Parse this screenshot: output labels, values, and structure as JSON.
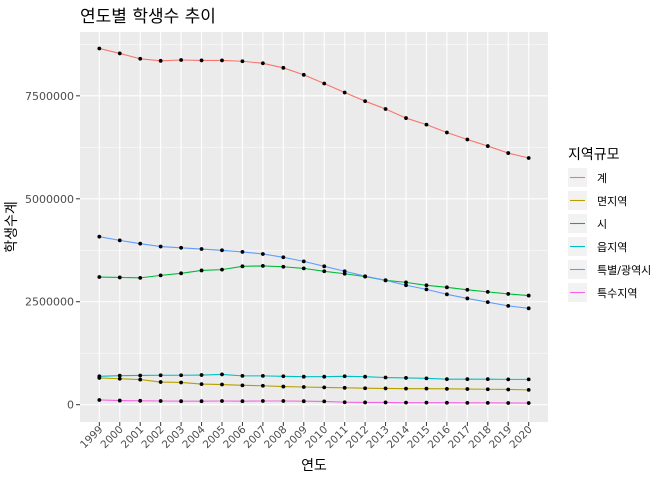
{
  "chart_data": {
    "type": "line",
    "title": "연도별 학생수 추이",
    "xlabel": "연도",
    "ylabel": "학생수계",
    "x": [
      1999,
      2000,
      2001,
      2002,
      2003,
      2004,
      2005,
      2006,
      2007,
      2008,
      2009,
      2010,
      2011,
      2012,
      2013,
      2014,
      2015,
      2016,
      2017,
      2018,
      2019,
      2020
    ],
    "x_tick_labels": [
      "1999",
      "2000",
      "2001",
      "2002",
      "2003",
      "2004",
      "2005",
      "2006",
      "2007",
      "2008",
      "2009",
      "2010",
      "2011",
      "2012",
      "2013",
      "2014",
      "2015",
      "2016",
      "2017",
      "2018",
      "2019",
      "2020"
    ],
    "y_ticks": [
      0,
      2500000,
      5000000,
      7500000
    ],
    "y_tick_labels": [
      "0",
      "2500000",
      "5000000",
      "7500000"
    ],
    "ylim": [
      -420000,
      9050000
    ],
    "grid": true,
    "points": true,
    "legend": {
      "title": "지역규모",
      "position": "right"
    },
    "series": [
      {
        "name": "계",
        "color": "#F8766D",
        "values": [
          8650000,
          8530000,
          8400000,
          8350000,
          8370000,
          8360000,
          8360000,
          8340000,
          8290000,
          8180000,
          8010000,
          7800000,
          7580000,
          7370000,
          7180000,
          6960000,
          6800000,
          6610000,
          6440000,
          6280000,
          6110000,
          5990000
        ]
      },
      {
        "name": "면지역",
        "color": "#B79F00",
        "values": [
          650000,
          630000,
          610000,
          550000,
          540000,
          500000,
          490000,
          470000,
          460000,
          440000,
          430000,
          420000,
          410000,
          400000,
          395000,
          390000,
          390000,
          385000,
          380000,
          375000,
          370000,
          360000
        ]
      },
      {
        "name": "시",
        "color": "#00BA38",
        "values": [
          3100000,
          3090000,
          3080000,
          3140000,
          3190000,
          3260000,
          3280000,
          3360000,
          3370000,
          3350000,
          3310000,
          3240000,
          3180000,
          3110000,
          3020000,
          2970000,
          2900000,
          2850000,
          2790000,
          2740000,
          2690000,
          2650000
        ]
      },
      {
        "name": "읍지역",
        "color": "#00BFC4",
        "values": [
          690000,
          705000,
          710000,
          715000,
          715000,
          720000,
          735000,
          700000,
          700000,
          690000,
          680000,
          680000,
          690000,
          680000,
          660000,
          650000,
          640000,
          620000,
          620000,
          620000,
          615000,
          615000
        ]
      },
      {
        "name": "특별/광역시",
        "color": "#619CFF",
        "values": [
          4080000,
          3990000,
          3910000,
          3840000,
          3810000,
          3780000,
          3750000,
          3710000,
          3660000,
          3580000,
          3480000,
          3360000,
          3240000,
          3120000,
          3020000,
          2900000,
          2800000,
          2680000,
          2580000,
          2490000,
          2400000,
          2340000
        ]
      },
      {
        "name": "특수지역",
        "color": "#F564E3",
        "values": [
          115000,
          100000,
          95000,
          90000,
          85000,
          85000,
          90000,
          85000,
          90000,
          90000,
          85000,
          80000,
          60000,
          55000,
          55000,
          50000,
          50000,
          48000,
          45000,
          45000,
          42000,
          40000
        ]
      }
    ]
  }
}
